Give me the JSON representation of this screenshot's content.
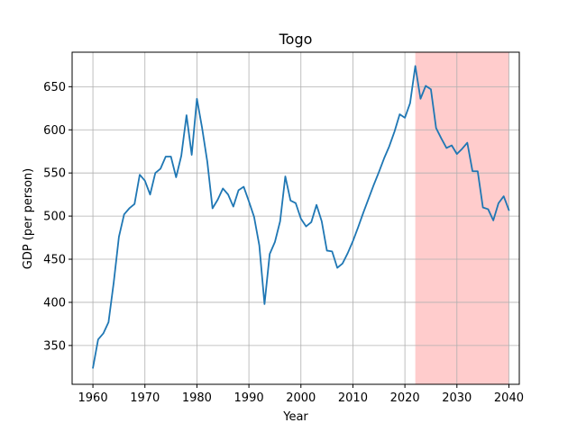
{
  "chart_data": {
    "type": "line",
    "title": "Togo",
    "xlabel": "Year",
    "ylabel": "GDP (per person)",
    "xlim": [
      1956,
      2042
    ],
    "ylim": [
      305,
      690
    ],
    "grid": true,
    "xticks": [
      1960,
      1970,
      1980,
      1990,
      2000,
      2010,
      2020,
      2030,
      2040
    ],
    "yticks": [
      350,
      400,
      450,
      500,
      550,
      600,
      650
    ],
    "shaded_region": {
      "x_start": 2022,
      "x_end": 2040,
      "color": "#ffcccc"
    },
    "line_color": "#1f77b4",
    "series": [
      {
        "x": [
          1960,
          1961,
          1962,
          1963,
          1964,
          1965,
          1966,
          1967,
          1968,
          1969,
          1970,
          1971,
          1972,
          1973,
          1974,
          1975,
          1976,
          1977,
          1978,
          1979,
          1980,
          1981,
          1982,
          1983,
          1984,
          1985,
          1986,
          1987,
          1988,
          1989,
          1990,
          1991,
          1992,
          1993,
          1994,
          1995,
          1996,
          1997,
          1998,
          1999,
          2000,
          2001,
          2002,
          2003,
          2004,
          2005,
          2006,
          2007,
          2008,
          2009,
          2010,
          2011,
          2012,
          2013,
          2014,
          2015,
          2016,
          2017,
          2018,
          2019,
          2020,
          2021,
          2022,
          2023,
          2024,
          2025,
          2026,
          2027,
          2028,
          2029,
          2030,
          2031,
          2032,
          2033,
          2034,
          2035,
          2036,
          2037,
          2038,
          2039,
          2040
        ],
        "y": [
          324,
          357,
          364,
          377,
          423,
          476,
          502,
          509,
          514,
          548,
          541,
          525,
          550,
          555,
          569,
          569,
          545,
          570,
          617,
          571,
          636,
          602,
          563,
          509,
          519,
          532,
          525,
          511,
          530,
          534,
          517,
          499,
          466,
          398,
          456,
          470,
          494,
          546,
          518,
          515,
          497,
          488,
          493,
          513,
          494,
          460,
          459,
          440,
          445,
          457,
          471,
          487,
          504,
          520,
          536,
          551,
          567,
          581,
          598,
          618,
          614,
          631,
          674,
          636,
          651,
          647,
          602,
          590,
          579,
          582,
          572,
          578,
          585,
          552,
          552,
          510,
          508,
          495,
          515,
          523,
          507
        ]
      }
    ]
  }
}
